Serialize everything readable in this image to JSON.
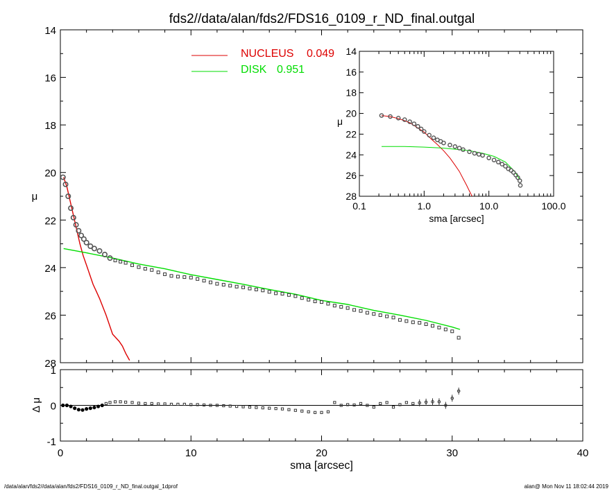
{
  "title": "fds2//data/alan/fds2/FDS16_0109_r_ND_final.outgal",
  "footer_left": "/data/alan/fds2//data/alan/fds2/FDS16_0109_r_ND_final.outgal_1dprof",
  "footer_right": "alan@  Mon Nov 11 18:02:44 2019",
  "colors": {
    "nucleus": "#dd0000",
    "disk": "#00dd00",
    "data": "#555555",
    "axis": "#000000"
  },
  "chart_data": [
    {
      "type": "line",
      "name": "main-profile",
      "xlim": [
        0,
        40
      ],
      "ylim": [
        14,
        28
      ],
      "y_inverted": true,
      "ylabel": "μ",
      "xlabel": "",
      "yticks": [
        "14",
        "16",
        "18",
        "20",
        "22",
        "24",
        "26",
        "28"
      ],
      "xticks": [],
      "legend": {
        "placement": "top-center",
        "entries": [
          {
            "label": "NUCLEUS",
            "value": "0.049",
            "color": "#dd0000"
          },
          {
            "label": "DISK",
            "value": "0.951",
            "color": "#00dd00"
          }
        ]
      },
      "series": [
        {
          "name": "NUCLEUS",
          "x": [
            0.25,
            0.5,
            0.75,
            1.0,
            1.25,
            1.5,
            1.75,
            2.0,
            2.25,
            2.5,
            2.75,
            3.0,
            3.25,
            3.5,
            3.75,
            4.0,
            4.25,
            4.5,
            4.75,
            5.0,
            5.3
          ],
          "y": [
            20.2,
            20.6,
            21.2,
            21.8,
            22.4,
            23.0,
            23.5,
            23.9,
            24.3,
            24.7,
            25.0,
            25.3,
            25.65,
            26.0,
            26.4,
            26.8,
            26.95,
            27.1,
            27.3,
            27.6,
            27.9
          ]
        },
        {
          "name": "DISK",
          "x": [
            0.25,
            2,
            4,
            6,
            8,
            10,
            12,
            14,
            16,
            18,
            20,
            22,
            24,
            26,
            28,
            30,
            30.6
          ],
          "y": [
            23.2,
            23.38,
            23.6,
            23.85,
            24.05,
            24.3,
            24.5,
            24.7,
            24.92,
            25.12,
            25.38,
            25.55,
            25.8,
            26.0,
            26.22,
            26.5,
            26.6
          ]
        },
        {
          "name": "data",
          "x": [
            0.2,
            0.4,
            0.6,
            0.8,
            1.0,
            1.2,
            1.4,
            1.6,
            1.8,
            2.0,
            2.3,
            2.6,
            3.0,
            3.4,
            3.8,
            4.2,
            4.6,
            5.0,
            5.5,
            6.0,
            6.5,
            7.0,
            7.5,
            8.0,
            8.5,
            9.0,
            9.5,
            10.0,
            10.5,
            11.0,
            11.5,
            12.0,
            12.5,
            13.0,
            13.5,
            14.0,
            14.5,
            15.0,
            15.5,
            16.0,
            16.5,
            17.0,
            17.5,
            18.0,
            18.5,
            19.0,
            19.5,
            20.0,
            20.5,
            21.0,
            21.5,
            22.0,
            22.5,
            23.0,
            23.5,
            24.0,
            24.5,
            25.0,
            25.5,
            26.0,
            26.5,
            27.0,
            27.5,
            28.0,
            28.5,
            29.0,
            29.5,
            30.0,
            30.5
          ],
          "y": [
            20.2,
            20.5,
            21.0,
            21.5,
            21.9,
            22.2,
            22.45,
            22.65,
            22.8,
            22.95,
            23.1,
            23.2,
            23.3,
            23.45,
            23.6,
            23.7,
            23.75,
            23.8,
            23.9,
            23.98,
            24.05,
            24.1,
            24.2,
            24.28,
            24.35,
            24.38,
            24.4,
            24.42,
            24.48,
            24.55,
            24.62,
            24.68,
            24.72,
            24.76,
            24.8,
            24.83,
            24.88,
            24.92,
            24.96,
            25.02,
            25.08,
            25.1,
            25.15,
            25.2,
            25.28,
            25.35,
            25.42,
            25.45,
            25.52,
            25.6,
            25.65,
            25.7,
            25.78,
            25.82,
            25.9,
            25.95,
            26.0,
            26.05,
            26.1,
            26.2,
            26.25,
            26.3,
            26.32,
            26.38,
            26.45,
            26.52,
            26.6,
            26.68,
            26.95
          ]
        }
      ]
    },
    {
      "type": "line",
      "name": "inset-log-profile",
      "xscale": "log",
      "xlim": [
        0.1,
        100
      ],
      "ylim": [
        14,
        28
      ],
      "y_inverted": true,
      "xlabel": "sma [arcsec]",
      "ylabel": "μ",
      "xticks": [
        "0.1",
        "1.0",
        "10.0",
        "100.0"
      ],
      "yticks": [
        "14",
        "16",
        "18",
        "20",
        "22",
        "24",
        "26",
        "28"
      ],
      "series": [
        {
          "name": "NUCLEUS",
          "x": [
            0.22,
            0.3,
            0.4,
            0.5,
            0.6,
            0.8,
            1.0,
            1.3,
            1.6,
            2.0,
            2.5,
            3.0,
            3.5,
            4.0,
            4.5,
            5.0,
            5.5
          ],
          "y": [
            20.2,
            20.3,
            20.5,
            20.7,
            20.9,
            21.4,
            21.8,
            22.5,
            23.0,
            23.6,
            24.3,
            25.0,
            25.6,
            26.3,
            26.9,
            27.5,
            28.0
          ]
        },
        {
          "name": "DISK",
          "x": [
            0.22,
            0.5,
            1,
            2,
            3,
            5,
            8,
            12,
            18,
            25,
            30
          ],
          "y": [
            23.2,
            23.2,
            23.25,
            23.35,
            23.45,
            23.6,
            23.85,
            24.15,
            24.7,
            25.6,
            26.4
          ]
        },
        {
          "name": "data",
          "x": [
            0.22,
            0.3,
            0.4,
            0.5,
            0.6,
            0.7,
            0.8,
            0.9,
            1.0,
            1.2,
            1.4,
            1.6,
            1.8,
            2.0,
            2.5,
            3.0,
            3.5,
            4.0,
            5.0,
            6.0,
            7.0,
            8.0,
            10.0,
            12.0,
            14.0,
            16.0,
            18.0,
            20.0,
            22.0,
            24.0,
            26.0,
            28.0,
            30.0,
            30.6
          ],
          "y": [
            20.2,
            20.3,
            20.45,
            20.6,
            20.8,
            21.0,
            21.25,
            21.5,
            21.75,
            22.1,
            22.35,
            22.55,
            22.7,
            22.85,
            23.05,
            23.2,
            23.35,
            23.5,
            23.7,
            23.85,
            23.95,
            24.05,
            24.3,
            24.5,
            24.7,
            24.9,
            25.1,
            25.35,
            25.5,
            25.7,
            25.95,
            26.2,
            26.5,
            26.95
          ]
        }
      ]
    },
    {
      "type": "scatter",
      "name": "residuals",
      "xlim": [
        0,
        40
      ],
      "ylim": [
        -1,
        1
      ],
      "xlabel": "sma [arcsec]",
      "ylabel": "Δ μ",
      "xticks": [
        "0",
        "10",
        "20",
        "30",
        "40"
      ],
      "yticks": [
        "1",
        "0",
        "-1"
      ],
      "series": [
        {
          "name": "residual",
          "x": [
            0.2,
            0.5,
            0.8,
            1.1,
            1.4,
            1.7,
            2.0,
            2.3,
            2.6,
            2.9,
            3.2,
            3.5,
            3.8,
            4.2,
            4.6,
            5.0,
            5.5,
            6.0,
            6.5,
            7.0,
            7.5,
            8.0,
            8.5,
            9.0,
            9.5,
            10.0,
            10.5,
            11.0,
            11.5,
            12.0,
            12.5,
            13.0,
            13.5,
            14.0,
            14.5,
            15.0,
            15.5,
            16.0,
            16.5,
            17.0,
            17.5,
            18.0,
            18.5,
            19.0,
            19.5,
            20.0,
            20.5,
            21.0,
            21.5,
            22.0,
            22.5,
            23.0,
            23.5,
            24.0,
            24.5,
            25.0,
            25.5,
            26.0,
            26.5,
            27.0,
            27.5,
            28.0,
            28.5,
            29.0,
            29.5,
            30.0,
            30.5
          ],
          "y": [
            0.0,
            0.0,
            -0.03,
            -0.08,
            -0.12,
            -0.13,
            -0.1,
            -0.08,
            -0.06,
            -0.03,
            0.0,
            0.05,
            0.08,
            0.1,
            0.1,
            0.09,
            0.08,
            0.06,
            0.05,
            0.05,
            0.04,
            0.04,
            0.03,
            0.03,
            0.03,
            0.02,
            0.02,
            0.01,
            0.0,
            0.0,
            -0.01,
            -0.02,
            -0.03,
            -0.04,
            -0.05,
            -0.06,
            -0.07,
            -0.08,
            -0.09,
            -0.1,
            -0.12,
            -0.14,
            -0.16,
            -0.18,
            -0.2,
            -0.2,
            -0.18,
            0.08,
            0.0,
            0.02,
            0.01,
            0.05,
            0.0,
            -0.05,
            0.05,
            0.08,
            -0.05,
            0.02,
            0.08,
            0.05,
            0.07,
            0.09,
            0.1,
            0.1,
            0.0,
            0.2,
            0.4
          ]
        }
      ]
    }
  ]
}
